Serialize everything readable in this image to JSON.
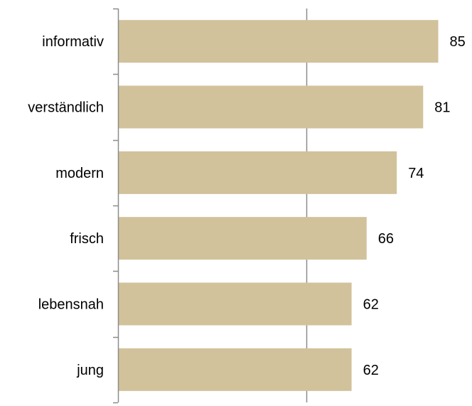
{
  "chart_data": {
    "type": "bar",
    "orientation": "horizontal",
    "categories": [
      "informativ",
      "verständlich",
      "modern",
      "frisch",
      "lebensnah",
      "jung"
    ],
    "values": [
      85,
      81,
      74,
      66,
      62,
      62
    ],
    "data_labels": [
      "85",
      "81",
      "74",
      "66",
      "62",
      "62"
    ],
    "xlim": [
      0,
      100
    ],
    "x_gridlines": [
      50
    ],
    "grid": true,
    "legend": "none",
    "title": "",
    "xlabel": "",
    "ylabel": ""
  },
  "colors": {
    "bar": "#D1C29B",
    "axis": "#8C8C8C",
    "text": "#000000"
  }
}
